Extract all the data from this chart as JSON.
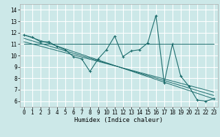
{
  "title": "",
  "xlabel": "Humidex (Indice chaleur)",
  "bg_color": "#cce8e8",
  "grid_color": "#ffffff",
  "line_color": "#1a6b6b",
  "xlim": [
    -0.5,
    23.5
  ],
  "ylim": [
    5.5,
    14.5
  ],
  "xticks": [
    0,
    1,
    2,
    3,
    4,
    5,
    6,
    7,
    8,
    9,
    10,
    11,
    12,
    13,
    14,
    15,
    16,
    17,
    18,
    19,
    20,
    21,
    22,
    23
  ],
  "yticks": [
    6,
    7,
    8,
    9,
    10,
    11,
    12,
    13,
    14
  ],
  "series_x": [
    0,
    1,
    2,
    3,
    4,
    5,
    6,
    7,
    8,
    9,
    10,
    11,
    12,
    13,
    14,
    15,
    16,
    17,
    18,
    19,
    20,
    21,
    22,
    23
  ],
  "series_y": [
    11.8,
    11.6,
    11.2,
    11.2,
    10.8,
    10.5,
    9.9,
    9.7,
    8.6,
    9.7,
    10.5,
    11.7,
    9.9,
    10.4,
    10.5,
    11.1,
    13.5,
    7.6,
    11.0,
    8.2,
    7.3,
    6.1,
    6.0,
    6.2
  ],
  "trend_lines": [
    {
      "x0": 0,
      "y0": 11.8,
      "x1": 23,
      "y1": 6.2
    },
    {
      "x0": 0,
      "y0": 11.5,
      "x1": 23,
      "y1": 6.5
    },
    {
      "x0": 0,
      "y0": 11.2,
      "x1": 23,
      "y1": 6.8
    },
    {
      "x0": 0,
      "y0": 11.0,
      "x1": 23,
      "y1": 11.0
    }
  ],
  "tick_fontsize": 5.5,
  "xlabel_fontsize": 6.5
}
